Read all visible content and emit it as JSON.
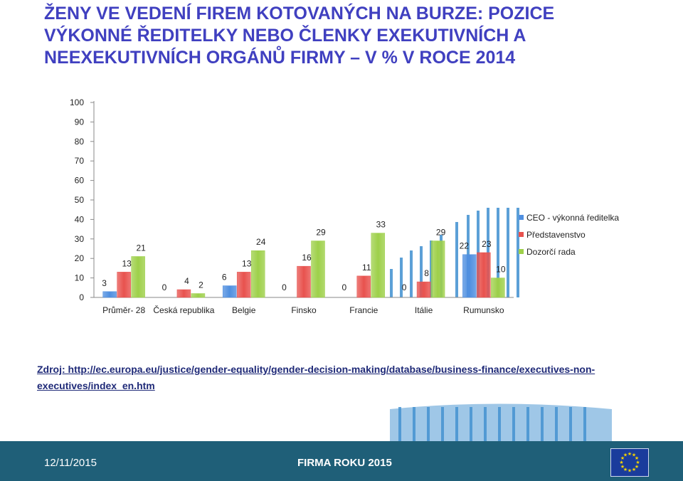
{
  "title": "ŽENY VE VEDENÍ FIREM KOTOVANÝCH NA BURZE: POZICE VÝKONNÉ ŘEDITELKY NEBO ČLENKY  EXEKUTIVNÍCH A NEEXEKUTIVNÍCH ORGÁNŮ FIRMY – V % V ROCE 2014",
  "source": {
    "prefix": "Zdroj: ",
    "link": "http://ec.europa.eu/justice/gender-equality/gender-decision-making/database/business-finance/executives-non-executives/index_en.htm"
  },
  "footer": {
    "date": "12/11/2015",
    "event": "FIRMA ROKU 2015"
  },
  "colors": {
    "series1": "#4f8fe0",
    "series2": "#e8524e",
    "series3": "#9ed04a",
    "stripes": "#3f8fd0",
    "title": "#4040c0",
    "footer": "#1f5f78"
  },
  "chart_data": {
    "type": "bar",
    "categories": [
      "Průměr- 28",
      "Česká republika",
      "Belgie",
      "Finsko",
      "Francie",
      "Itálie",
      "Rumunsko"
    ],
    "series": [
      {
        "name": "CEO - výkonná ředitelka",
        "values": [
          3,
          0,
          6,
          0,
          0,
          0,
          22
        ],
        "labels": [
          "3",
          "0",
          "6",
          "0",
          "0",
          "0",
          "22"
        ]
      },
      {
        "name": "Představenstvo",
        "values": [
          13,
          4,
          13,
          16,
          11,
          8,
          23
        ],
        "labels": [
          "13",
          "4",
          "13",
          "16",
          "11",
          "8",
          "23"
        ]
      },
      {
        "name": "Dozorčí rada",
        "values": [
          21,
          2,
          24,
          29,
          33,
          29,
          10
        ],
        "labels": [
          "21",
          "2",
          "24",
          "29",
          "33",
          "29",
          "10"
        ]
      }
    ],
    "yticks": [
      "0",
      "10",
      "20",
      "30",
      "40",
      "50",
      "60",
      "70",
      "80",
      "90",
      "100"
    ],
    "ylim": [
      0,
      100
    ],
    "legend": "right",
    "grid": false
  }
}
